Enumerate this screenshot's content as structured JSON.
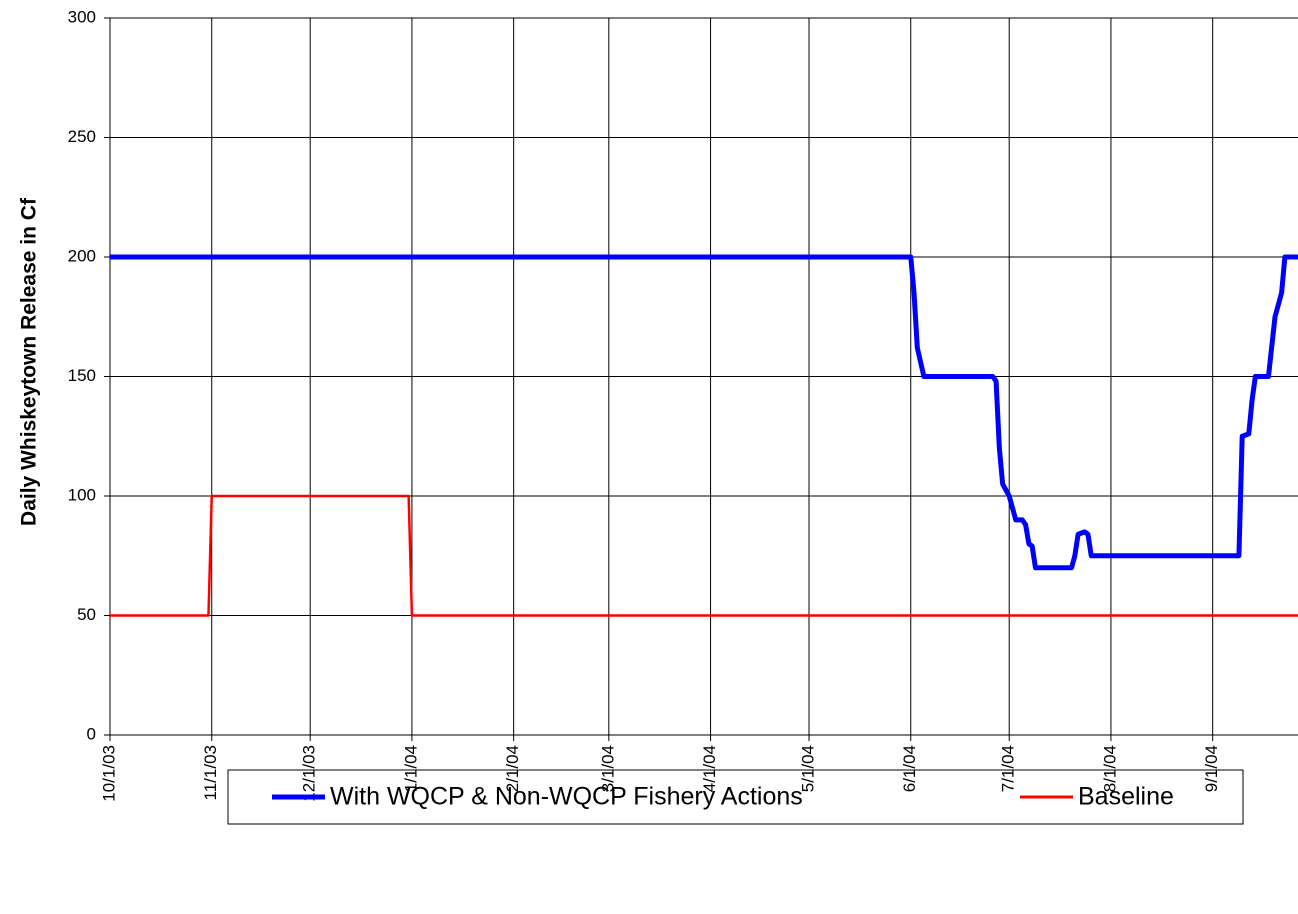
{
  "chart_data": {
    "type": "line",
    "y_label": "Daily Whiskeytown Release in Cf",
    "xlim": [
      "2003-10-01",
      "2004-09-27"
    ],
    "xticks": [
      {
        "value": "2003-10-01",
        "label": "10/1/03"
      },
      {
        "value": "2003-11-01",
        "label": "11/1/03"
      },
      {
        "value": "2003-12-01",
        "label": "12/1/03"
      },
      {
        "value": "2004-01-01",
        "label": "1/1/04"
      },
      {
        "value": "2004-02-01",
        "label": "2/1/04"
      },
      {
        "value": "2004-03-01",
        "label": "3/1/04"
      },
      {
        "value": "2004-04-01",
        "label": "4/1/04"
      },
      {
        "value": "2004-05-01",
        "label": "5/1/04"
      },
      {
        "value": "2004-06-01",
        "label": "6/1/04"
      },
      {
        "value": "2004-07-01",
        "label": "7/1/04"
      },
      {
        "value": "2004-08-01",
        "label": "8/1/04"
      },
      {
        "value": "2004-09-01",
        "label": "9/1/04"
      }
    ],
    "ylim": [
      0,
      300
    ],
    "yticks": [
      0,
      50,
      100,
      150,
      200,
      250,
      300
    ],
    "grid": true,
    "series": [
      {
        "name": "With WQCP & Non-WQCP Fishery Actions",
        "color": "#0000ff",
        "x": [
          "2003-10-01",
          "2004-06-01",
          "2004-06-02",
          "2004-06-03",
          "2004-06-05",
          "2004-06-26",
          "2004-06-27",
          "2004-06-28",
          "2004-06-29",
          "2004-07-01",
          "2004-07-03",
          "2004-07-05",
          "2004-07-06",
          "2004-07-07",
          "2004-07-08",
          "2004-07-09",
          "2004-07-20",
          "2004-07-21",
          "2004-07-22",
          "2004-07-24",
          "2004-07-25",
          "2004-07-26",
          "2004-09-09",
          "2004-09-10",
          "2004-09-12",
          "2004-09-13",
          "2004-09-14",
          "2004-09-18",
          "2004-09-20",
          "2004-09-22",
          "2004-09-23",
          "2004-09-27"
        ],
        "values": [
          200,
          200,
          185,
          162,
          150,
          150,
          148,
          120,
          105,
          100,
          90,
          90,
          88,
          80,
          79,
          70,
          70,
          75,
          84,
          85,
          84,
          75,
          75,
          125,
          126,
          140,
          150,
          150,
          175,
          185,
          200,
          200
        ]
      },
      {
        "name": "Baseline",
        "color": "#ff0000",
        "x": [
          "2003-10-01",
          "2003-10-31",
          "2003-11-01",
          "2003-12-31",
          "2004-01-01",
          "2004-09-27"
        ],
        "values": [
          50,
          50,
          100,
          100,
          50,
          50
        ]
      }
    ]
  }
}
